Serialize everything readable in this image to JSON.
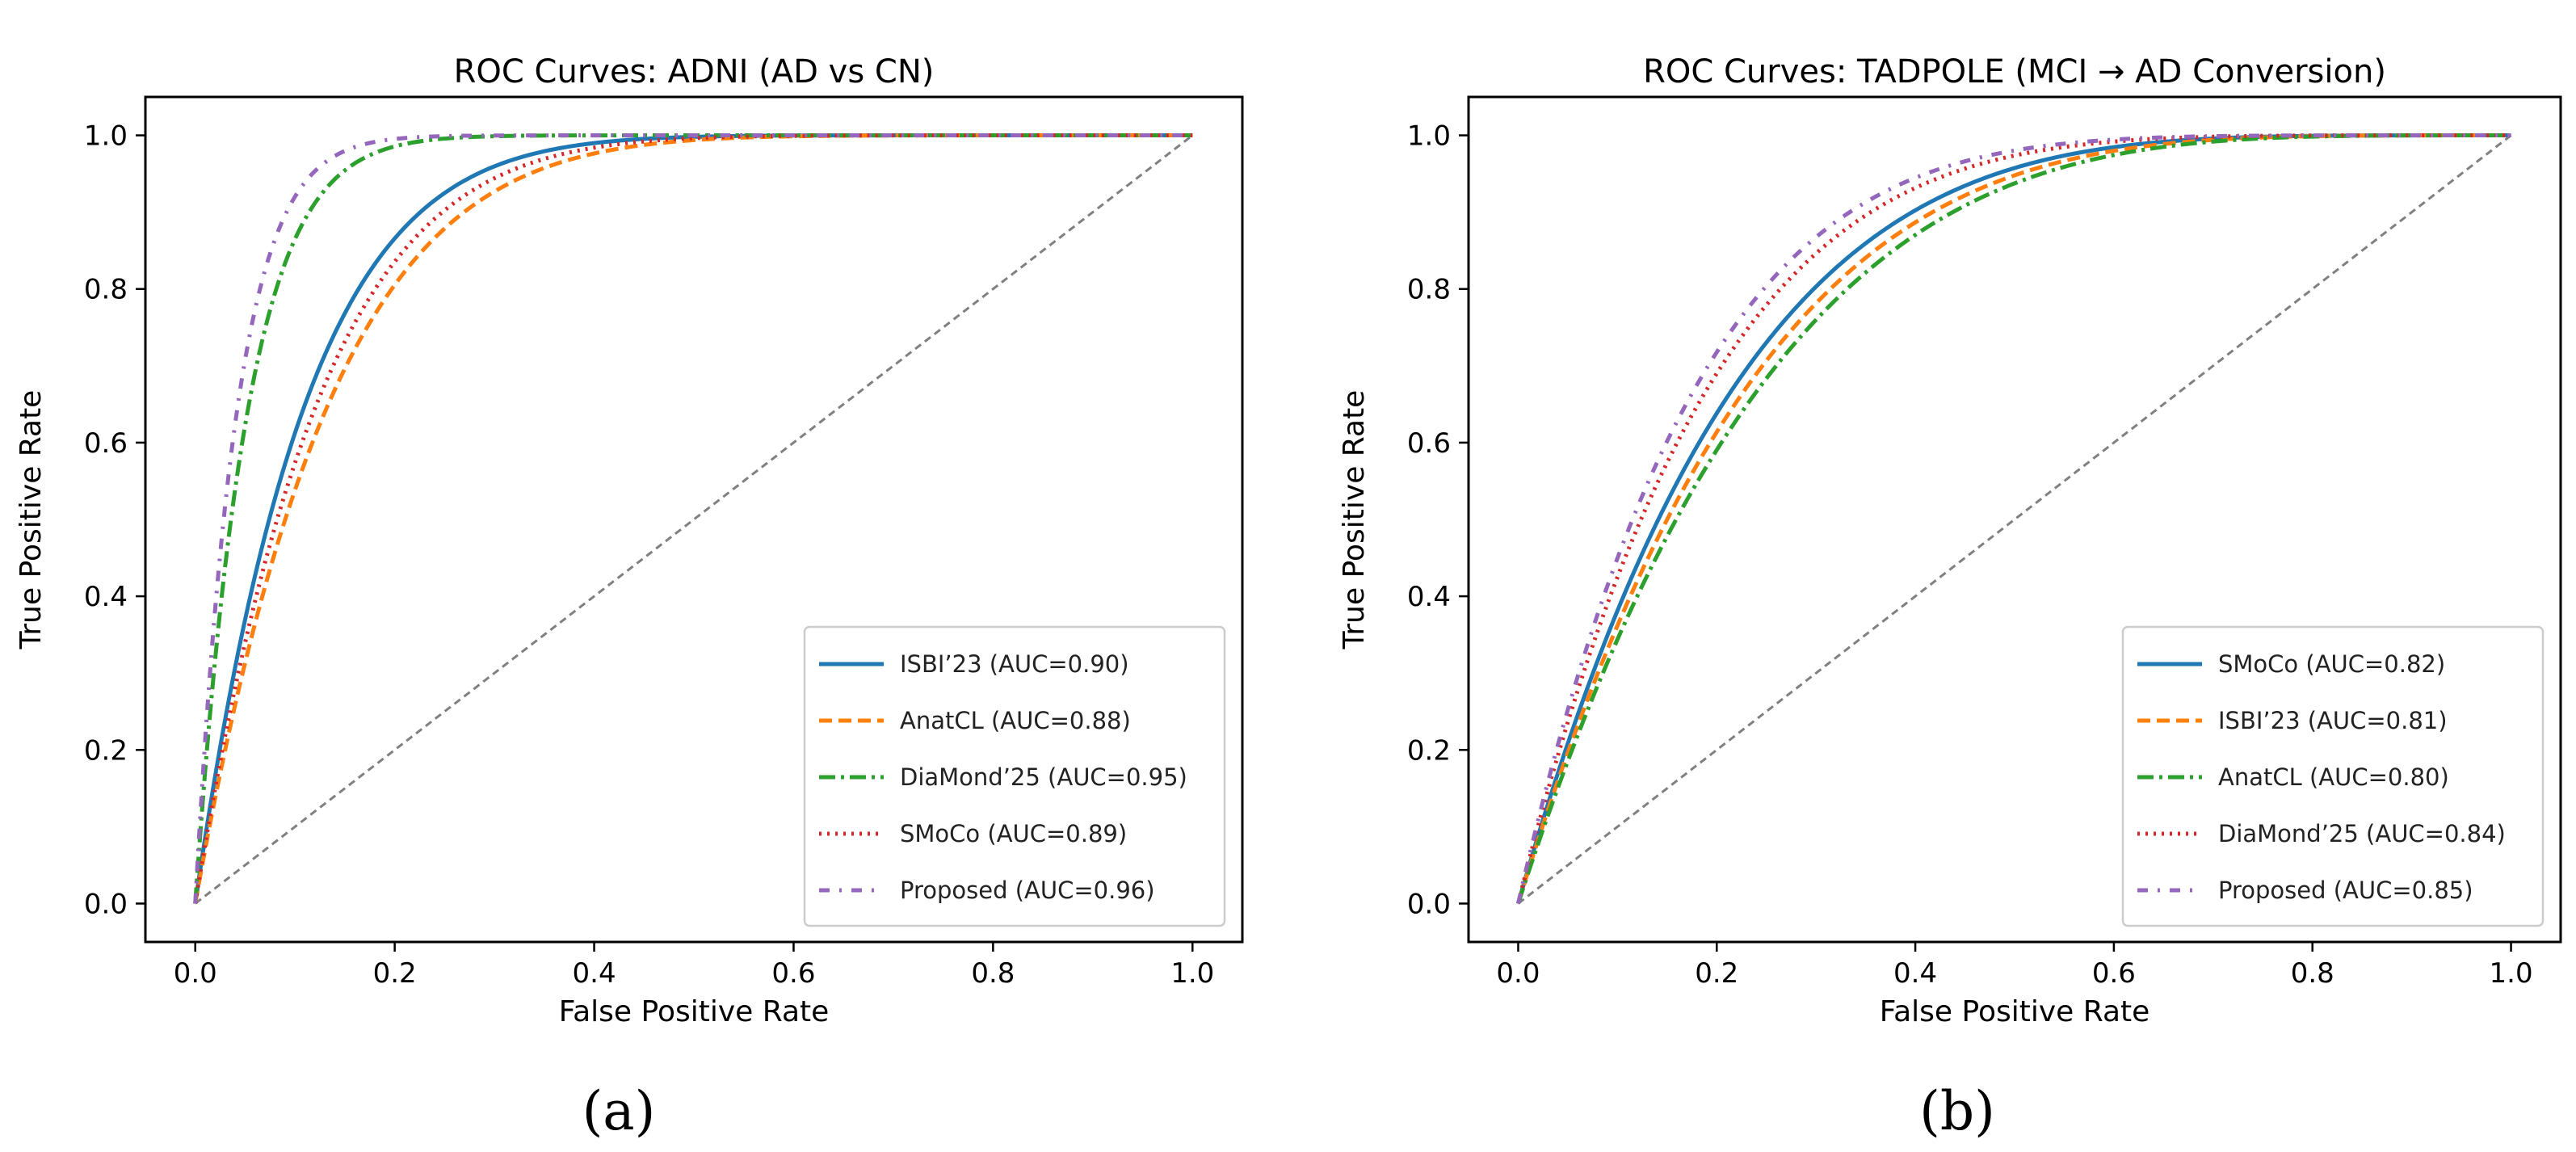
{
  "chart_data": [
    {
      "type": "line",
      "title": "ROC Curves: ADNI (AD vs CN)",
      "xlabel": "False Positive Rate",
      "ylabel": "True Positive Rate",
      "xlim": [
        0,
        1
      ],
      "ylim": [
        0,
        1
      ],
      "xticks": [
        "0.0",
        "0.2",
        "0.4",
        "0.6",
        "0.8",
        "1.0"
      ],
      "yticks": [
        "0.0",
        "0.2",
        "0.4",
        "0.6",
        "0.8",
        "1.0"
      ],
      "legend_position": "lower-right",
      "panel_label": "(a)",
      "series": [
        {
          "name": "ISBI’23 (AUC=0.90)",
          "auc": 0.9,
          "color": "#1f77b4",
          "style": "solid"
        },
        {
          "name": "AnatCL (AUC=0.88)",
          "auc": 0.88,
          "color": "#ff7f0e",
          "style": "dashed"
        },
        {
          "name": "DiaMond’25 (AUC=0.95)",
          "auc": 0.95,
          "color": "#2ca02c",
          "style": "dashdot"
        },
        {
          "name": "SMoCo (AUC=0.89)",
          "auc": 0.89,
          "color": "#d62728",
          "style": "dotted"
        },
        {
          "name": "Proposed (AUC=0.96)",
          "auc": 0.96,
          "color": "#9467bd",
          "style": "dashdot-sparse"
        }
      ],
      "chance_line": {
        "x": [
          0,
          1
        ],
        "y": [
          0,
          1
        ],
        "color": "#808080"
      }
    },
    {
      "type": "line",
      "title": "ROC Curves: TADPOLE (MCI → AD Conversion)",
      "xlabel": "False Positive Rate",
      "ylabel": "True Positive Rate",
      "xlim": [
        0,
        1
      ],
      "ylim": [
        0,
        1
      ],
      "xticks": [
        "0.0",
        "0.2",
        "0.4",
        "0.6",
        "0.8",
        "1.0"
      ],
      "yticks": [
        "0.0",
        "0.2",
        "0.4",
        "0.6",
        "0.8",
        "1.0"
      ],
      "legend_position": "lower-right",
      "panel_label": "(b)",
      "series": [
        {
          "name": "SMoCo (AUC=0.82)",
          "auc": 0.82,
          "color": "#1f77b4",
          "style": "solid"
        },
        {
          "name": "ISBI’23 (AUC=0.81)",
          "auc": 0.81,
          "color": "#ff7f0e",
          "style": "dashed"
        },
        {
          "name": "AnatCL (AUC=0.80)",
          "auc": 0.8,
          "color": "#2ca02c",
          "style": "dashdot"
        },
        {
          "name": "DiaMond’25 (AUC=0.84)",
          "auc": 0.84,
          "color": "#d62728",
          "style": "dotted"
        },
        {
          "name": "Proposed (AUC=0.85)",
          "auc": 0.85,
          "color": "#9467bd",
          "style": "dashdot-sparse"
        }
      ],
      "chance_line": {
        "x": [
          0,
          1
        ],
        "y": [
          0,
          1
        ],
        "color": "#808080"
      }
    }
  ]
}
